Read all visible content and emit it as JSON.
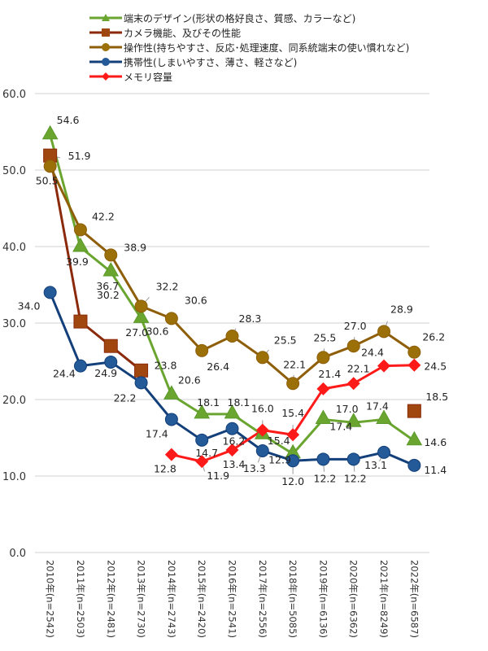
{
  "chart_data": {
    "type": "line",
    "title": "",
    "xlabel": "",
    "ylabel": "",
    "ylim": [
      0,
      60
    ],
    "yticks": [
      "0.0",
      "10.0",
      "20.0",
      "30.0",
      "40.0",
      "50.0",
      "60.0"
    ],
    "ytick_values": [
      0,
      10,
      20,
      30,
      40,
      50,
      60
    ],
    "grid": true,
    "legend_position": "top",
    "categories": [
      "2010年(n=2542)",
      "2011年(n=2503)",
      "2012年(n=2481)",
      "2013年(n=2730)",
      "2014年(n=2743)",
      "2015年(n=2420)",
      "2016年(n=2541)",
      "2017年(n=2556)",
      "2018年(n=5085)",
      "2019年(n=6136)",
      "2020年(n=6362)",
      "2021年(n=8249)",
      "2022年(n=6587)"
    ],
    "series": [
      {
        "name": "端末のデザイン(形状の格好良さ、質感、カラーなど)",
        "color": "#6aa530",
        "marker": "triangle",
        "values": [
          54.6,
          39.9,
          36.7,
          30.6,
          20.6,
          18.1,
          18.1,
          15.4,
          12.9,
          17.4,
          17.0,
          17.4,
          14.6
        ],
        "labels": [
          "54.6",
          "39.9",
          "36.7",
          "30.6",
          "20.6",
          "18.1",
          "18.1",
          "15.4",
          "12.9",
          "17.4",
          "17.0",
          "17.4",
          "14.6"
        ]
      },
      {
        "name": "カメラ機能、及びその性能",
        "color": "#8b2a0a",
        "marker_color": "#a0470f",
        "marker": "square",
        "values": [
          51.9,
          30.2,
          27.0,
          23.8,
          null,
          null,
          null,
          null,
          null,
          null,
          null,
          null,
          18.5
        ],
        "labels": [
          "51.9",
          "30.2",
          "27.0",
          "23.8",
          null,
          null,
          null,
          null,
          null,
          null,
          null,
          null,
          "18.5"
        ]
      },
      {
        "name": "操作性(持ちやすさ、反応･処理速度、同系統端末の使い慣れなど)",
        "color": "#8e5e08",
        "marker_color": "#9b7008",
        "marker": "circle",
        "values": [
          50.5,
          42.2,
          38.9,
          32.2,
          30.6,
          26.4,
          28.3,
          25.5,
          22.1,
          25.5,
          27.0,
          28.9,
          26.2
        ],
        "labels": [
          "50.5",
          "42.2",
          "38.9",
          "32.2",
          "30.6",
          "26.4",
          "28.3",
          "25.5",
          "22.1",
          "25.5",
          "27.0",
          "28.9",
          "26.2"
        ]
      },
      {
        "name": "携帯性(しまいやすさ、薄さ、軽さなど)",
        "color": "#133f7a",
        "marker_color": "#245a97",
        "marker": "circle",
        "values": [
          34.0,
          24.4,
          24.9,
          22.2,
          17.4,
          14.7,
          16.2,
          13.3,
          12.0,
          12.2,
          12.2,
          13.1,
          11.4
        ],
        "labels": [
          "34.0",
          "24.4",
          "24.9",
          "22.2",
          "17.4",
          "14.7",
          "16.2",
          "13.3",
          "12.0",
          "12.2",
          "12.2",
          "13.1",
          "11.4"
        ]
      },
      {
        "name": "メモリ容量",
        "color": "#ff1a1a",
        "marker": "diamond",
        "values": [
          null,
          null,
          null,
          null,
          12.8,
          11.9,
          13.4,
          16.0,
          15.4,
          21.4,
          22.1,
          24.4,
          24.5
        ],
        "labels": [
          null,
          null,
          null,
          null,
          "12.8",
          "11.9",
          "13.4",
          "16.0",
          "15.4",
          "21.4",
          "22.1",
          "24.4",
          "24.5"
        ]
      }
    ]
  }
}
